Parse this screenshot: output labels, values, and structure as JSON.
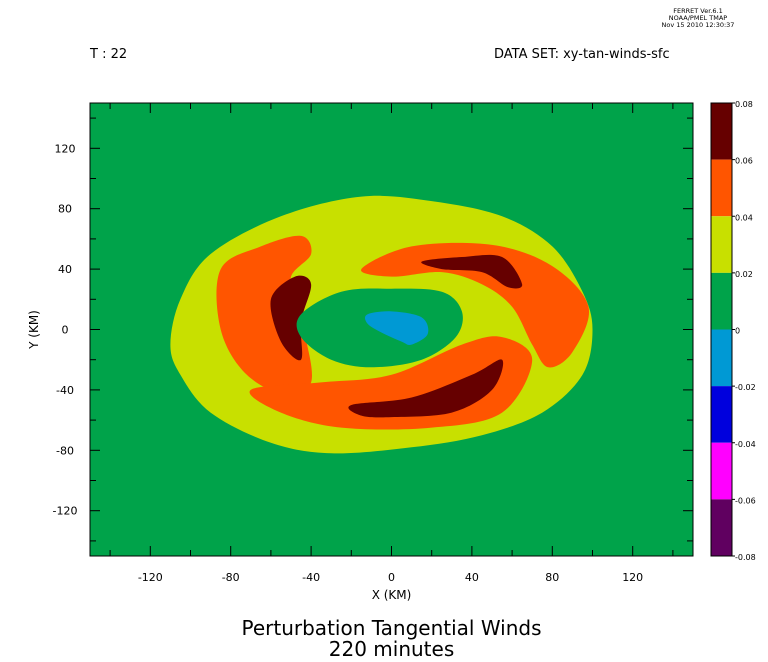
{
  "header": {
    "ferret_lines": [
      "FERRET Ver.6.1",
      "NOAA/PMEL TMAP",
      "Nov 15 2010 12:30:37"
    ],
    "time_label": "T : 22",
    "dataset_label": "DATA SET: xy-tan-winds-sfc"
  },
  "chart_data": {
    "type": "heatmap",
    "subtype": "filled-contour",
    "title": "Perturbation Tangential Winds",
    "subtitle": "220 minutes",
    "xlabel": "X (KM)",
    "ylabel": "Y (KM)",
    "xlim": [
      -150,
      150
    ],
    "ylim": [
      -150,
      150
    ],
    "x_ticks": [
      -120,
      -80,
      -40,
      0,
      40,
      80,
      120
    ],
    "y_ticks": [
      120,
      80,
      40,
      0,
      -40,
      -80,
      -120
    ],
    "grid": false,
    "colorbar": {
      "levels": [
        0.08,
        0.06,
        0.04,
        0.02,
        0,
        -0.02,
        -0.04,
        -0.06,
        -0.08
      ],
      "labels": [
        "0.08",
        "0.06",
        "0.04",
        "0.02",
        "0",
        "-0.02",
        "-0.04",
        "-0.06",
        "-0.08"
      ],
      "colors": [
        "#660000",
        "#ff5500",
        "#c8e000",
        "#00a34a",
        "#0099d4",
        "#0000dd",
        "#ff00ff",
        "#600060"
      ]
    },
    "regions": [
      {
        "level": "0.02 to 0.04",
        "color": "#c8e000",
        "shape": "ring",
        "points": [
          [
            -110,
            -10
          ],
          [
            -105,
            20
          ],
          [
            -90,
            50
          ],
          [
            -55,
            75
          ],
          [
            -15,
            88
          ],
          [
            20,
            85
          ],
          [
            55,
            75
          ],
          [
            80,
            55
          ],
          [
            95,
            25
          ],
          [
            100,
            0
          ],
          [
            95,
            -30
          ],
          [
            75,
            -55
          ],
          [
            45,
            -70
          ],
          [
            10,
            -78
          ],
          [
            -30,
            -82
          ],
          [
            -60,
            -75
          ],
          [
            -90,
            -55
          ],
          [
            -105,
            -30
          ]
        ]
      },
      {
        "level": "0.04 to 0.06",
        "color": "#ff5500",
        "shape": "west-arm",
        "points": [
          [
            -85,
            40
          ],
          [
            -65,
            55
          ],
          [
            -45,
            62
          ],
          [
            -40,
            50
          ],
          [
            -50,
            35
          ],
          [
            -48,
            15
          ],
          [
            -42,
            -10
          ],
          [
            -40,
            -35
          ],
          [
            -50,
            -45
          ],
          [
            -72,
            -30
          ],
          [
            -85,
            0
          ]
        ]
      },
      {
        "level": "0.04 to 0.06",
        "color": "#ff5500",
        "shape": "north-arm",
        "points": [
          [
            -15,
            40
          ],
          [
            10,
            55
          ],
          [
            50,
            56
          ],
          [
            80,
            42
          ],
          [
            98,
            15
          ],
          [
            90,
            -15
          ],
          [
            78,
            -25
          ],
          [
            70,
            -10
          ],
          [
            60,
            15
          ],
          [
            45,
            30
          ],
          [
            25,
            38
          ],
          [
            0,
            35
          ]
        ]
      },
      {
        "level": "0.04 to 0.06",
        "color": "#ff5500",
        "shape": "south-arm",
        "points": [
          [
            -70,
            -40
          ],
          [
            -35,
            -35
          ],
          [
            0,
            -30
          ],
          [
            35,
            -10
          ],
          [
            55,
            -5
          ],
          [
            70,
            -20
          ],
          [
            55,
            -55
          ],
          [
            20,
            -65
          ],
          [
            -25,
            -65
          ],
          [
            -55,
            -55
          ]
        ]
      },
      {
        "level": "0.06 to 0.08",
        "color": "#660000",
        "shape": "west-core",
        "points": [
          [
            -60,
            20
          ],
          [
            -48,
            35
          ],
          [
            -40,
            30
          ],
          [
            -45,
            5
          ],
          [
            -45,
            -20
          ],
          [
            -55,
            -8
          ]
        ]
      },
      {
        "level": "0.06 to 0.08",
        "color": "#660000",
        "shape": "north-core",
        "points": [
          [
            15,
            45
          ],
          [
            35,
            48
          ],
          [
            55,
            48
          ],
          [
            65,
            30
          ],
          [
            58,
            28
          ],
          [
            45,
            38
          ],
          [
            25,
            40
          ]
        ]
      },
      {
        "level": "0.06 to 0.08",
        "color": "#660000",
        "shape": "south-core",
        "points": [
          [
            -20,
            -50
          ],
          [
            10,
            -45
          ],
          [
            40,
            -30
          ],
          [
            55,
            -20
          ],
          [
            50,
            -40
          ],
          [
            30,
            -55
          ],
          [
            0,
            -58
          ],
          [
            -15,
            -57
          ]
        ]
      },
      {
        "level": "0 to 0.02",
        "color": "#00a34a",
        "shape": "eye",
        "points": [
          [
            -45,
            10
          ],
          [
            -25,
            25
          ],
          [
            0,
            27
          ],
          [
            25,
            25
          ],
          [
            35,
            12
          ],
          [
            32,
            -5
          ],
          [
            15,
            -20
          ],
          [
            -10,
            -25
          ],
          [
            -30,
            -20
          ],
          [
            -45,
            -5
          ]
        ]
      },
      {
        "level": "-0.02 to 0",
        "color": "#0099d4",
        "shape": "center",
        "points": [
          [
            -12,
            10
          ],
          [
            0,
            12
          ],
          [
            15,
            8
          ],
          [
            18,
            -3
          ],
          [
            10,
            -10
          ],
          [
            5,
            -8
          ],
          [
            -5,
            -2
          ],
          [
            -12,
            4
          ]
        ]
      }
    ]
  }
}
